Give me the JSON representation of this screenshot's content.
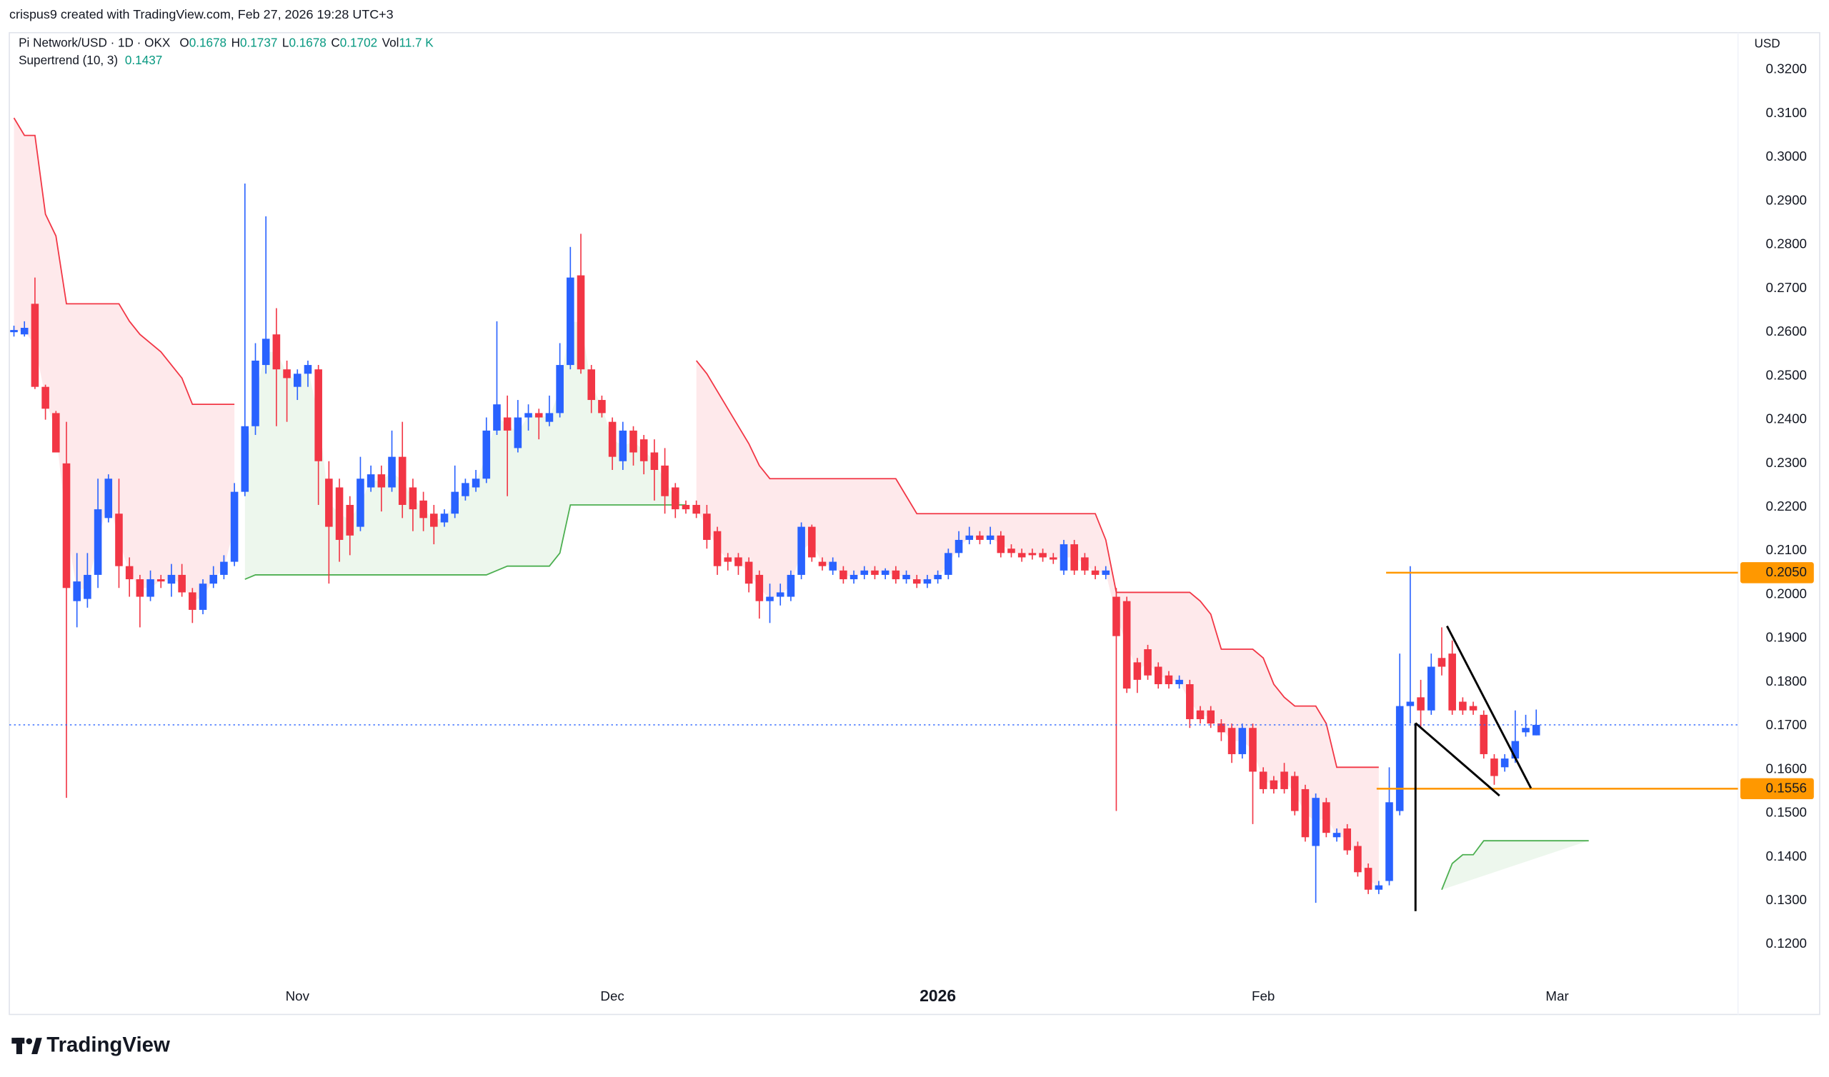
{
  "chart_data": {
    "type": "candlestick",
    "attribution": "crispus9 created with TradingView.com, Feb 27, 2026 19:28 UTC+3",
    "title": "Pi Network/USD · 1D · OKX",
    "legend": [
      {
        "label": "O",
        "value": 0.1678
      },
      {
        "label": "H",
        "value": 0.1737
      },
      {
        "label": "L",
        "value": 0.1678
      },
      {
        "label": "C",
        "value": 0.1702
      },
      {
        "label": "Vol",
        "value": 11700,
        "value_label": "11.7 K"
      }
    ],
    "currency": "USD",
    "brand": "TradingView",
    "up_color": "#2962ff",
    "down_color": "#f23645",
    "grid": false,
    "open": [
      0.26,
      0.2595,
      0.2665,
      0.2475,
      0.2415,
      0.23,
      0.1985,
      0.199,
      0.2045,
      0.2175,
      0.2185,
      0.2065,
      0.2035,
      0.1995,
      0.2035,
      0.2025,
      0.2045,
      0.2005,
      0.1965,
      0.2025,
      0.2045,
      0.2075,
      0.2235,
      0.2385,
      0.2525,
      0.2595,
      0.2515,
      0.2475,
      0.2505,
      0.2515,
      0.2265,
      0.2245,
      0.2205,
      0.2155,
      0.2245,
      0.2275,
      0.2245,
      0.2315,
      0.2245,
      0.2215,
      0.2185,
      0.2165,
      0.2185,
      0.2225,
      0.2245,
      0.2265,
      0.2375,
      0.2405,
      0.2335,
      0.2405,
      0.2415,
      0.2395,
      0.2415,
      0.2525,
      0.273,
      0.2515,
      0.2445,
      0.2395,
      0.2305,
      0.2375,
      0.2355,
      0.2325,
      0.2295,
      0.2245,
      0.2205,
      0.2205,
      0.2185,
      0.2145,
      0.2085,
      0.2085,
      0.2075,
      0.2045,
      0.1985,
      0.1995,
      0.1995,
      0.2045,
      0.2155,
      0.2075,
      0.2055,
      0.2055,
      0.2035,
      0.2045,
      0.2055,
      0.2045,
      0.2055,
      0.2035,
      0.2035,
      0.2025,
      0.2035,
      0.2045,
      0.2095,
      0.2125,
      0.2135,
      0.2125,
      0.2135,
      0.2105,
      0.2095,
      0.2095,
      0.2095,
      0.2085,
      0.2055,
      0.2115,
      0.2085,
      0.2055,
      0.2045,
      0.1995,
      0.1985,
      0.1845,
      0.1875,
      0.1835,
      0.1815,
      0.1795,
      0.1795,
      0.1735,
      0.1735,
      0.1705,
      0.1695,
      0.1635,
      0.1695,
      0.1595,
      0.1575,
      0.1595,
      0.1585,
      0.1555,
      0.1425,
      0.1525,
      0.1445,
      0.1465,
      0.1425,
      0.1375,
      0.1325,
      0.1345,
      0.1505,
      0.1745,
      0.1765,
      0.1735,
      0.1855,
      0.1865,
      0.1755,
      0.1745,
      0.1725,
      0.1625,
      0.1605,
      0.1625,
      0.1685,
      0.1678
    ],
    "high": [
      0.2615,
      0.2625,
      0.2725,
      0.248,
      0.242,
      0.2395,
      0.2095,
      0.2095,
      0.2265,
      0.2275,
      0.2265,
      0.2085,
      0.2045,
      0.2055,
      0.2045,
      0.207,
      0.207,
      0.2015,
      0.2035,
      0.2065,
      0.209,
      0.2255,
      0.294,
      0.2575,
      0.2865,
      0.2655,
      0.2535,
      0.2515,
      0.2535,
      0.2525,
      0.2305,
      0.2265,
      0.2225,
      0.2315,
      0.2295,
      0.2295,
      0.2375,
      0.2395,
      0.2265,
      0.2235,
      0.2205,
      0.2195,
      0.2295,
      0.2265,
      0.2285,
      0.2405,
      0.2625,
      0.2455,
      0.2445,
      0.2435,
      0.2425,
      0.2455,
      0.2575,
      0.2795,
      0.2825,
      0.2525,
      0.2455,
      0.2405,
      0.2395,
      0.2385,
      0.2365,
      0.2355,
      0.2335,
      0.2255,
      0.2215,
      0.2215,
      0.2205,
      0.2155,
      0.2095,
      0.2095,
      0.2085,
      0.2055,
      0.2025,
      0.2025,
      0.2055,
      0.2165,
      0.216,
      0.2085,
      0.2085,
      0.2065,
      0.2055,
      0.2065,
      0.2065,
      0.206,
      0.2065,
      0.2055,
      0.2045,
      0.2045,
      0.2055,
      0.2105,
      0.2145,
      0.2155,
      0.2145,
      0.2155,
      0.2145,
      0.2115,
      0.2105,
      0.2105,
      0.2105,
      0.2095,
      0.2125,
      0.2125,
      0.2095,
      0.2065,
      0.2065,
      0.2015,
      0.1995,
      0.1855,
      0.1885,
      0.1845,
      0.1825,
      0.1815,
      0.1805,
      0.1745,
      0.1745,
      0.1715,
      0.1705,
      0.1705,
      0.1705,
      0.1605,
      0.1585,
      0.1615,
      0.1595,
      0.1565,
      0.1545,
      0.1535,
      0.1465,
      0.1475,
      0.1435,
      0.1385,
      0.1345,
      0.1605,
      0.1865,
      0.2065,
      0.1805,
      0.1865,
      0.1925,
      0.1895,
      0.1765,
      0.1755,
      0.1735,
      0.1635,
      0.1635,
      0.1735,
      0.1725,
      0.1737
    ],
    "low": [
      0.259,
      0.259,
      0.247,
      0.24,
      0.2325,
      0.1535,
      0.1925,
      0.197,
      0.2015,
      0.2165,
      0.2015,
      0.1995,
      0.1925,
      0.1985,
      0.2015,
      0.1995,
      0.1995,
      0.1935,
      0.1955,
      0.2015,
      0.2035,
      0.2065,
      0.2225,
      0.2365,
      0.2505,
      0.2385,
      0.2395,
      0.2445,
      0.2475,
      0.2205,
      0.2025,
      0.2075,
      0.209,
      0.2145,
      0.2235,
      0.219,
      0.2235,
      0.2175,
      0.2145,
      0.2145,
      0.2115,
      0.2155,
      0.2175,
      0.2215,
      0.2235,
      0.2255,
      0.2365,
      0.2225,
      0.2325,
      0.2375,
      0.2355,
      0.2385,
      0.2405,
      0.2515,
      0.2505,
      0.2415,
      0.2405,
      0.2285,
      0.2285,
      0.2295,
      0.2275,
      0.2215,
      0.2185,
      0.2175,
      0.2185,
      0.2175,
      0.2105,
      0.2045,
      0.2055,
      0.2045,
      0.2005,
      0.1945,
      0.1935,
      0.1975,
      0.1985,
      0.2035,
      0.2075,
      0.2055,
      0.2045,
      0.2025,
      0.2025,
      0.2035,
      0.2035,
      0.2035,
      0.2025,
      0.2025,
      0.2015,
      0.2015,
      0.2025,
      0.2035,
      0.2085,
      0.2115,
      0.2115,
      0.2115,
      0.2085,
      0.2085,
      0.2075,
      0.208,
      0.2075,
      0.207,
      0.2045,
      0.2045,
      0.2045,
      0.2035,
      0.2035,
      0.1505,
      0.1775,
      0.1775,
      0.1805,
      0.1785,
      0.1785,
      0.1785,
      0.1695,
      0.1705,
      0.1695,
      0.1665,
      0.1615,
      0.1625,
      0.1475,
      0.1545,
      0.1545,
      0.1545,
      0.1495,
      0.1435,
      0.1295,
      0.1445,
      0.1435,
      0.1405,
      0.1355,
      0.1315,
      0.1315,
      0.1335,
      0.1495,
      0.1705,
      0.1695,
      0.1725,
      0.1815,
      0.1725,
      0.1725,
      0.1725,
      0.1625,
      0.1565,
      0.1595,
      0.1615,
      0.1675,
      0.1678
    ],
    "close": [
      0.2605,
      0.261,
      0.2475,
      0.2425,
      0.2325,
      0.2015,
      0.203,
      0.2045,
      0.2195,
      0.2265,
      0.2065,
      0.2035,
      0.1995,
      0.2035,
      0.203,
      0.2045,
      0.2005,
      0.1965,
      0.2025,
      0.2045,
      0.2075,
      0.2235,
      0.2385,
      0.2535,
      0.2585,
      0.2515,
      0.2495,
      0.2505,
      0.2525,
      0.2305,
      0.2155,
      0.2125,
      0.2135,
      0.2265,
      0.2275,
      0.2245,
      0.2315,
      0.2205,
      0.2195,
      0.2175,
      0.2155,
      0.2185,
      0.2235,
      0.2255,
      0.2265,
      0.2375,
      0.2435,
      0.2375,
      0.2405,
      0.2415,
      0.2405,
      0.2415,
      0.2525,
      0.2725,
      0.2515,
      0.2445,
      0.2415,
      0.2315,
      0.2375,
      0.2325,
      0.2305,
      0.2285,
      0.2225,
      0.2195,
      0.2195,
      0.2185,
      0.2125,
      0.2065,
      0.2075,
      0.2065,
      0.2025,
      0.1985,
      0.1995,
      0.2005,
      0.2045,
      0.2155,
      0.2085,
      0.2065,
      0.2075,
      0.2035,
      0.2045,
      0.2055,
      0.2045,
      0.2055,
      0.2035,
      0.2045,
      0.2025,
      0.2035,
      0.2045,
      0.2095,
      0.2125,
      0.2135,
      0.2125,
      0.2135,
      0.2095,
      0.2095,
      0.2085,
      0.209,
      0.2085,
      0.208,
      0.2115,
      0.2055,
      0.2055,
      0.2045,
      0.2055,
      0.1905,
      0.1785,
      0.1805,
      0.1815,
      0.1795,
      0.1795,
      0.1805,
      0.1715,
      0.1715,
      0.1705,
      0.1685,
      0.1635,
      0.1695,
      0.1595,
      0.1555,
      0.1555,
      0.1555,
      0.1505,
      0.1445,
      0.1535,
      0.1455,
      0.1455,
      0.1415,
      0.1365,
      0.1325,
      0.1335,
      0.1525,
      0.1745,
      0.1755,
      0.1735,
      0.1835,
      0.1835,
      0.1735,
      0.1735,
      0.1735,
      0.1635,
      0.1585,
      0.1625,
      0.1665,
      0.1695,
      0.1702
    ],
    "supertrend": {
      "name": "Supertrend (10, 3)",
      "value": 0.1437,
      "up_color": "#4caf50",
      "down_color": "#f23645",
      "down": [
        0.309,
        0.305,
        0.305,
        0.287,
        0.282,
        0.2665,
        0.2665,
        0.2665,
        0.2665,
        0.2665,
        0.2665,
        0.2625,
        0.2595,
        0.2575,
        0.2555,
        0.2525,
        0.2495,
        0.2435,
        0.2435,
        0.2435,
        0.2435,
        0.2435,
        null,
        null,
        null,
        null,
        null,
        null,
        null,
        null,
        null,
        null,
        null,
        null,
        null,
        null,
        null,
        null,
        null,
        null,
        null,
        null,
        null,
        null,
        null,
        null,
        null,
        null,
        null,
        null,
        null,
        null,
        null,
        null,
        null,
        null,
        null,
        null,
        null,
        null,
        null,
        null,
        null,
        null,
        null,
        0.2535,
        0.2505,
        0.2465,
        0.2425,
        0.2385,
        0.2345,
        0.2295,
        0.2265,
        0.2265,
        0.2265,
        0.2265,
        0.2265,
        0.2265,
        0.2265,
        0.2265,
        0.2265,
        0.2265,
        0.2265,
        0.2265,
        0.2265,
        0.2225,
        0.2185,
        0.2185,
        0.2185,
        0.2185,
        0.2185,
        0.2185,
        0.2185,
        0.2185,
        0.2185,
        0.2185,
        0.2185,
        0.2185,
        0.2185,
        0.2185,
        0.2185,
        0.2185,
        0.2185,
        0.2185,
        0.2125,
        0.2005,
        0.2005,
        0.2005,
        0.2005,
        0.2005,
        0.2005,
        0.2005,
        0.2005,
        0.1985,
        0.1955,
        0.1875,
        0.1875,
        0.1875,
        0.1875,
        0.1855,
        0.1795,
        0.1765,
        0.1745,
        0.1745,
        0.1745,
        0.1705,
        0.1605,
        0.1605,
        0.1605,
        0.1605,
        0.1605,
        null,
        null,
        null,
        null,
        null,
        null,
        null,
        null,
        null,
        null,
        null,
        null,
        null,
        null,
        null
      ],
      "up": [
        null,
        null,
        null,
        null,
        null,
        null,
        null,
        null,
        null,
        null,
        null,
        null,
        null,
        null,
        null,
        null,
        null,
        null,
        null,
        null,
        null,
        null,
        0.2035,
        0.2045,
        0.2045,
        0.2045,
        0.2045,
        0.2045,
        0.2045,
        0.2045,
        0.2045,
        0.2045,
        0.2045,
        0.2045,
        0.2045,
        0.2045,
        0.2045,
        0.2045,
        0.2045,
        0.2045,
        0.2045,
        0.2045,
        0.2045,
        0.2045,
        0.2045,
        0.2045,
        0.2055,
        0.2065,
        0.2065,
        0.2065,
        0.2065,
        0.2065,
        0.2095,
        0.2205,
        0.2205,
        0.2205,
        0.2205,
        0.2205,
        0.2205,
        0.2205,
        0.2205,
        0.2205,
        0.2205,
        0.2205,
        0.2205,
        null,
        null,
        null,
        null,
        null,
        null,
        null,
        null,
        null,
        null,
        null,
        null,
        null,
        null,
        null,
        null,
        null,
        null,
        null,
        null,
        null,
        null,
        null,
        null,
        null,
        null,
        null,
        null,
        null,
        null,
        null,
        null,
        null,
        null,
        null,
        null,
        null,
        null,
        null,
        null,
        null,
        null,
        null,
        null,
        null,
        null,
        null,
        null,
        null,
        null,
        null,
        null,
        null,
        null,
        null,
        null,
        null,
        null,
        null,
        null,
        null,
        null,
        null,
        null,
        null,
        null,
        null,
        null,
        null,
        null,
        null,
        0.1325,
        0.1385,
        0.1405,
        0.1405,
        0.1437,
        0.1437,
        0.1437,
        0.1437,
        0.1437,
        0.1437,
        0.1437,
        0.1437,
        0.1437,
        0.1437,
        0.1437
      ]
    },
    "levels": [
      {
        "value": 0.205,
        "label": "0.2050",
        "from": 130.7,
        "color": "#ff9800"
      },
      {
        "value": 0.1556,
        "label": "0.1556",
        "from": 129.8,
        "color": "#ff9800"
      }
    ],
    "drawings": [
      {
        "x": [
          133.5,
          141.5
        ],
        "y": [
          0.1706,
          0.154
        ]
      },
      {
        "x": [
          136.5,
          144.5
        ],
        "y": [
          0.1928,
          0.1557
        ]
      },
      {
        "x": [
          133.5,
          133.5
        ],
        "y": [
          0.1706,
          0.1276
        ]
      }
    ],
    "xlim": [
      -0.44,
      164.22
    ],
    "xticks": [
      {
        "value": 27,
        "label": "Nov"
      },
      {
        "value": 57,
        "label": "Dec"
      },
      {
        "value": 88,
        "label": "2026",
        "bold": true
      },
      {
        "value": 119,
        "label": "Feb"
      },
      {
        "value": 147,
        "label": "Mar"
      }
    ],
    "ylim": [
      0.1125,
      0.3285
    ],
    "yticks": [
      {
        "value": 0.12,
        "label": "0.1200"
      },
      {
        "value": 0.13,
        "label": "0.1300"
      },
      {
        "value": 0.14,
        "label": "0.1400"
      },
      {
        "value": 0.15,
        "label": "0.1500"
      },
      {
        "value": 0.16,
        "label": "0.1600"
      },
      {
        "value": 0.17,
        "label": "0.1700"
      },
      {
        "value": 0.18,
        "label": "0.1800"
      },
      {
        "value": 0.19,
        "label": "0.1900"
      },
      {
        "value": 0.2,
        "label": "0.2000"
      },
      {
        "value": 0.21,
        "label": "0.2100"
      },
      {
        "value": 0.22,
        "label": "0.2200"
      },
      {
        "value": 0.23,
        "label": "0.2300"
      },
      {
        "value": 0.24,
        "label": "0.2400"
      },
      {
        "value": 0.25,
        "label": "0.2500"
      },
      {
        "value": 0.26,
        "label": "0.2600"
      },
      {
        "value": 0.27,
        "label": "0.2700"
      },
      {
        "value": 0.28,
        "label": "0.2800"
      },
      {
        "value": 0.29,
        "label": "0.2900"
      },
      {
        "value": 0.3,
        "label": "0.3000"
      },
      {
        "value": 0.31,
        "label": "0.3100"
      },
      {
        "value": 0.32,
        "label": "0.3200"
      }
    ]
  }
}
